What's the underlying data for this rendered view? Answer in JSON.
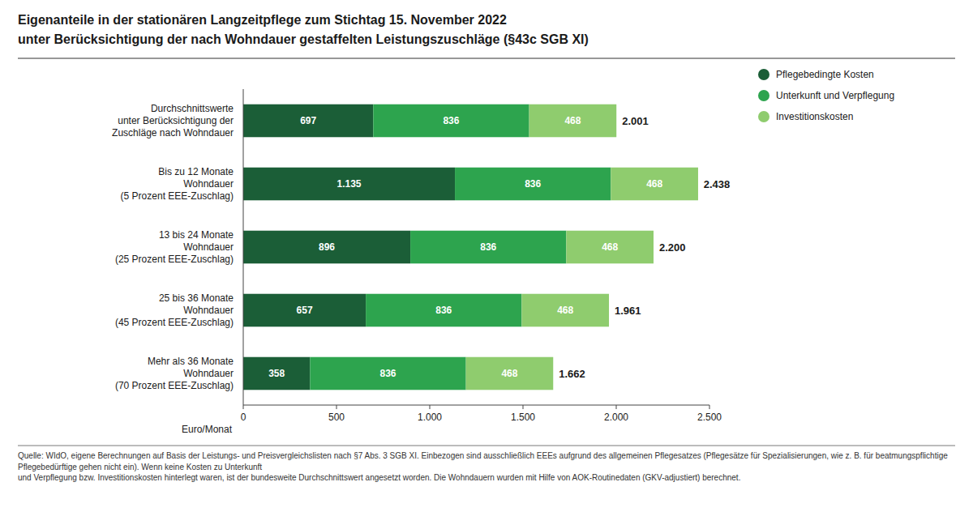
{
  "chart_data": {
    "type": "bar",
    "orientation": "horizontal",
    "stacked": true,
    "title": "Eigenanteile in der stationären Langzeitpflege zum Stichtag 15. November 2022",
    "subtitle": "unter Berücksichtigung der nach Wohndauer gestaffelten Leistungszuschläge (§43c SGB XI)",
    "categories": [
      "Durchschnittswerte\nunter Berücksichtigung der\nZuschläge nach Wohndauer",
      "Bis zu 12 Monate\nWohndauer\n(5 Prozent EEE-Zuschlag)",
      "13 bis 24 Monate\nWohndauer\n(25 Prozent EEE-Zuschlag)",
      "25 bis 36 Monate\nWohndauer\n(45 Prozent EEE-Zuschlag)",
      "Mehr als 36 Monate\nWohndauer\n(70 Prozent EEE-Zuschlag)"
    ],
    "series": [
      {
        "name": "Pflegebedingte Kosten",
        "color": "#1b5e37",
        "values": [
          697,
          1135,
          896,
          657,
          358
        ],
        "value_labels": [
          "697",
          "1.135",
          "896",
          "657",
          "358"
        ]
      },
      {
        "name": "Unterkunft und Verpflegung",
        "color": "#2da44e",
        "values": [
          836,
          836,
          836,
          836,
          836
        ]
      },
      {
        "name": "Investitionskosten",
        "color": "#8fcc6e",
        "values": [
          468,
          468,
          468,
          468,
          468
        ]
      }
    ],
    "totals": {
      "values": [
        2001,
        2438,
        2200,
        1961,
        1662
      ],
      "value_labels": [
        "2.001",
        "2.438",
        "2.200",
        "1.961",
        "1.662"
      ]
    },
    "x_label": "Euro/Monat",
    "xlim": [
      0,
      2500
    ],
    "xticks": [
      0,
      500,
      {
        "value": 1000,
        "label": "1.000"
      },
      {
        "value": 1500,
        "label": "1.500"
      },
      {
        "value": 2000,
        "label": "2.000"
      },
      {
        "value": 2500,
        "label": "2.500"
      }
    ],
    "grid": false,
    "legend": "right",
    "data_labels": true,
    "note": "Quelle: WIdO, eigene Berechnungen auf Basis der Leistungs- und Preisvergleichslisten nach §7 Abs. 3 SGB XI. Einbezogen sind ausschließlich EEEs aufgrund des allgemeinen Pflegesatzes (Pflegesätze für Spezialisierungen, wie z. B. für beatmungspflichtige Pflegebedürftige gehen nicht ein). Wenn keine Kosten zu Unterkunft\nund Verpflegung bzw. Investitionskosten hinterlegt waren, ist der bundesweite Durchschnittswert angesetzt worden. Die Wohndauern wurden mit Hilfe von AOK-Routinedaten (GKV-adjustiert) berechnet."
  }
}
